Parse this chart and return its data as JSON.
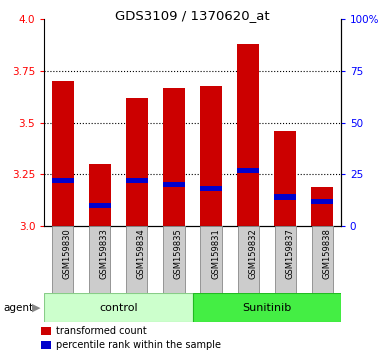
{
  "title": "GDS3109 / 1370620_at",
  "samples": [
    "GSM159830",
    "GSM159833",
    "GSM159834",
    "GSM159835",
    "GSM159831",
    "GSM159832",
    "GSM159837",
    "GSM159838"
  ],
  "transformed_counts": [
    3.7,
    3.3,
    3.62,
    3.67,
    3.68,
    3.88,
    3.46,
    3.19
  ],
  "percentile_ranks": [
    22,
    10,
    22,
    20,
    18,
    27,
    14,
    12
  ],
  "ylim_left": [
    3.0,
    4.0
  ],
  "ylim_right": [
    0,
    100
  ],
  "yticks_left": [
    3.0,
    3.25,
    3.5,
    3.75,
    4.0
  ],
  "yticks_right": [
    0,
    25,
    50,
    75,
    100
  ],
  "bar_color": "#cc0000",
  "percentile_color": "#0000cc",
  "bar_width": 0.6,
  "control_color": "#ccffcc",
  "sunitinib_color": "#44ee44",
  "control_edge_color": "#88cc88",
  "sunitinib_edge_color": "#22bb22",
  "agent_label": "agent",
  "legend_items": [
    "transformed count",
    "percentile rank within the sample"
  ],
  "grid_dotted_color": "#000000",
  "xlabel_bg_color": "#cccccc",
  "xlabel_edge_color": "#888888"
}
